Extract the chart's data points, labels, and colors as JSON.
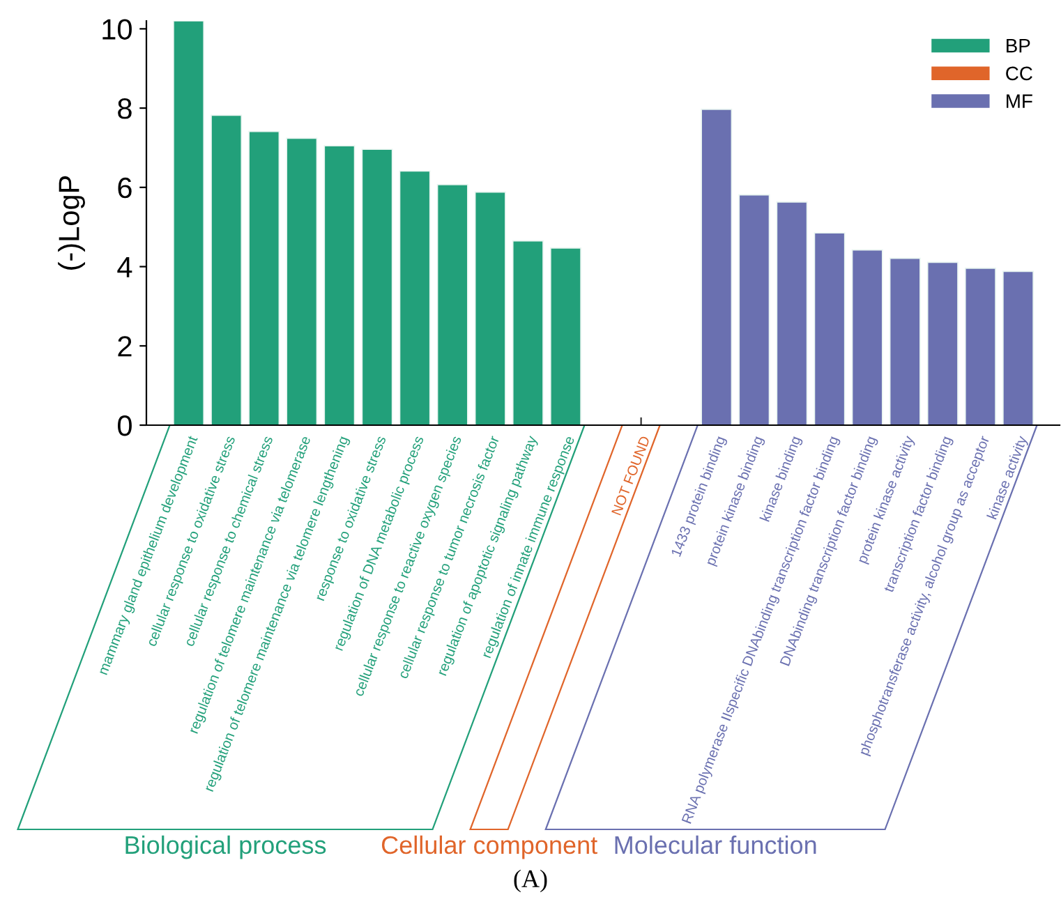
{
  "chart_data": {
    "type": "bar",
    "ylabel": "(-)LogP",
    "categories": [
      "mammary gland epithelium development",
      "cellular response to oxidative stress",
      "cellular response to chemical stress",
      "regulation of telomere maintenance via telomerase",
      "regulation of telomere maintenance via telomere lengthening",
      "response to oxidative stress",
      "regulation of DNA metabolic process",
      "cellular response to reactive oxygen species",
      "cellular response to tumor necrosis factor",
      "regulation of apoptotic signaling pathway",
      "regulation of innate immune response",
      null,
      "NOT FOUND",
      null,
      "1433 protein binding",
      "protein kinase binding",
      "kinase binding",
      "RNA polymerase IIspecific DNAbinding transcription factor binding",
      "DNAbinding transcription factor binding",
      "protein kinase activity",
      "transcription factor binding",
      "phosphotransferase activity, alcohol group as acceptor",
      "kinase activity"
    ],
    "series": [
      {
        "name": "BP",
        "color": "#22a07a",
        "values": [
          10.2,
          7.82,
          7.41,
          7.24,
          7.05,
          6.96,
          6.41,
          6.07,
          5.88,
          4.65,
          4.47,
          null,
          null,
          null,
          null,
          null,
          null,
          null,
          null,
          null,
          null,
          null,
          null
        ]
      },
      {
        "name": "CC",
        "color": "#e0652a",
        "values": [
          null,
          null,
          null,
          null,
          null,
          null,
          null,
          null,
          null,
          null,
          null,
          null,
          null,
          null,
          null,
          null,
          null,
          null,
          null,
          null,
          null,
          null,
          null
        ]
      },
      {
        "name": "MF",
        "color": "#6a70b0",
        "values": [
          null,
          null,
          null,
          null,
          null,
          null,
          null,
          null,
          null,
          null,
          null,
          null,
          null,
          null,
          7.97,
          5.81,
          5.63,
          4.85,
          4.42,
          4.21,
          4.11,
          3.96,
          3.88
        ]
      }
    ],
    "ylim": [
      0,
      10.2
    ],
    "yticks": [
      0,
      2,
      4,
      6,
      8,
      10
    ],
    "grid": false,
    "legend": "top right",
    "annotations": [
      "Biological process",
      "Cellular component",
      "Molecular function",
      "(A)"
    ]
  }
}
